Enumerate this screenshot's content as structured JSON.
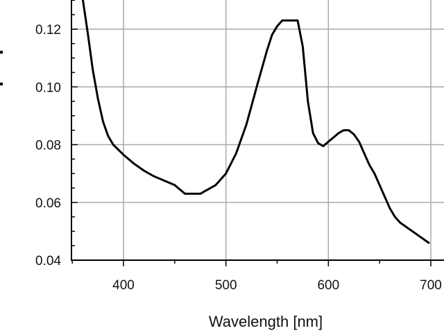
{
  "chart_data": {
    "type": "line",
    "xlabel": "Wavelength [nm]",
    "ylabel": "",
    "xlim": [
      350,
      705
    ],
    "ylim": [
      0.04,
      0.13
    ],
    "x_ticks": [
      400,
      500,
      600,
      700
    ],
    "x_tick_labels": [
      "400",
      "500",
      "600",
      "700"
    ],
    "y_ticks": [
      0.04,
      0.06,
      0.08,
      0.1,
      0.12
    ],
    "y_tick_labels": [
      "0.04",
      "0.06",
      "0.08",
      "0.10",
      "0.12"
    ],
    "grid": true,
    "series": [
      {
        "color": "#000000",
        "x": [
          360,
          365,
          370,
          375,
          380,
          385,
          390,
          400,
          410,
          420,
          430,
          440,
          450,
          455,
          460,
          470,
          475,
          480,
          490,
          500,
          510,
          520,
          530,
          540,
          545,
          550,
          555,
          560,
          565,
          570,
          575,
          580,
          585,
          590,
          595,
          600,
          605,
          610,
          615,
          620,
          625,
          630,
          635,
          640,
          645,
          650,
          655,
          660,
          665,
          670,
          680,
          690,
          698
        ],
        "y": [
          0.131,
          0.119,
          0.106,
          0.096,
          0.088,
          0.083,
          0.08,
          0.0765,
          0.0735,
          0.071,
          0.069,
          0.0675,
          0.066,
          0.0645,
          0.063,
          0.063,
          0.063,
          0.064,
          0.066,
          0.07,
          0.077,
          0.087,
          0.1,
          0.1125,
          0.118,
          0.121,
          0.123,
          0.123,
          0.123,
          0.123,
          0.114,
          0.095,
          0.084,
          0.0805,
          0.0795,
          0.081,
          0.0825,
          0.084,
          0.085,
          0.085,
          0.0835,
          0.081,
          0.077,
          0.073,
          0.07,
          0.066,
          0.062,
          0.058,
          0.055,
          0.053,
          0.0505,
          0.048,
          0.046
        ]
      }
    ]
  },
  "marks": {
    "left_edge_ticks": [
      0.112,
      0.101
    ]
  }
}
